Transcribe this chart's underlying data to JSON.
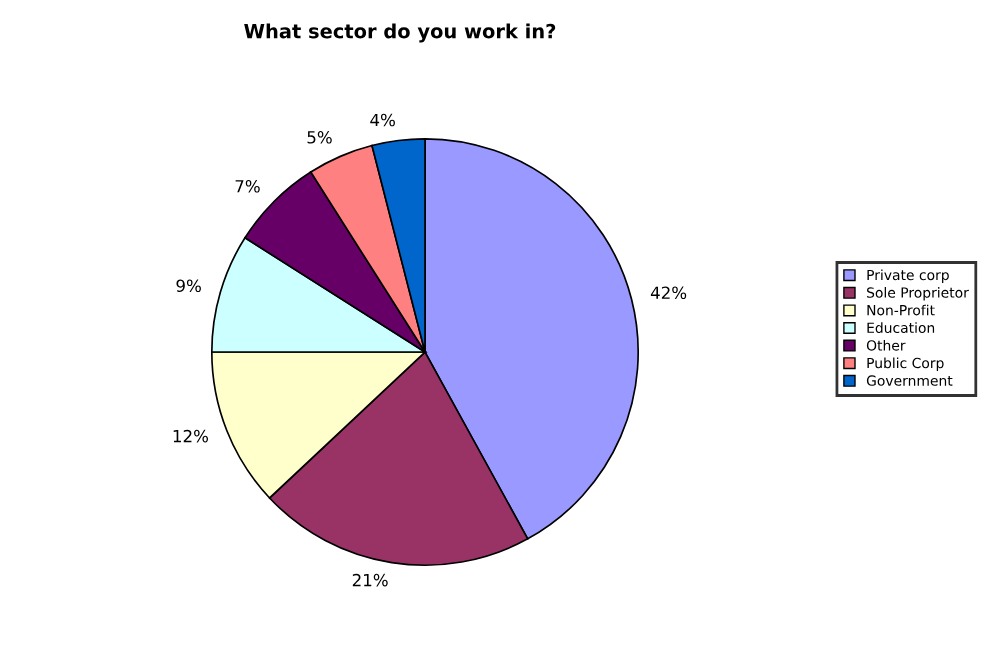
{
  "chart_data": {
    "type": "pie",
    "title": "What sector do you work in?",
    "categories": [
      "Private corp",
      "Sole Proprietor",
      "Non-Profit",
      "Education",
      "Other",
      "Public Corp",
      "Government"
    ],
    "values": [
      42,
      21,
      12,
      9,
      7,
      5,
      4
    ],
    "colors": [
      "#9999ff",
      "#993366",
      "#ffffcc",
      "#ccffff",
      "#660066",
      "#ff8080",
      "#0066cc"
    ],
    "value_labels": [
      "42%",
      "21%",
      "12%",
      "9%",
      "7%",
      "5%",
      "4%"
    ],
    "legend": "right"
  }
}
